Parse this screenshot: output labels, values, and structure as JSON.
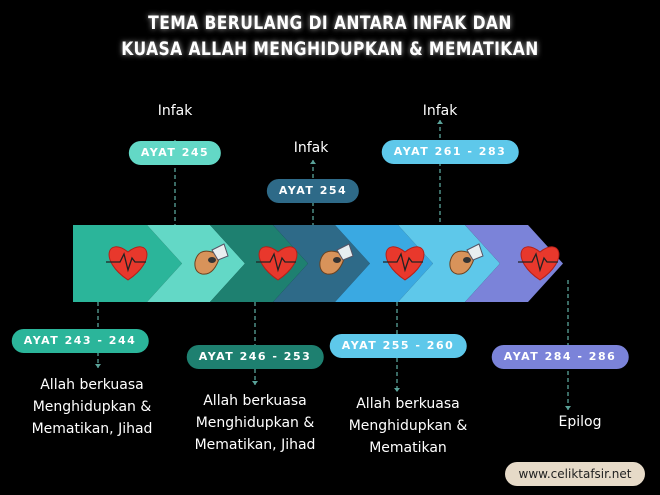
{
  "title": {
    "line1": "TEMA BERULANG DI ANTARA INFAK DAN",
    "line2": "KUASA ALLAH MENGHIDUPKAN & MEMATIKAN"
  },
  "segments": [
    {
      "color": "#2bb59a",
      "icon": "heart-icon"
    },
    {
      "color": "#63d8c6",
      "icon": "hand-icon"
    },
    {
      "color": "#1e8070",
      "icon": "heart-icon"
    },
    {
      "color": "#2e6a88",
      "icon": "hand-icon"
    },
    {
      "color": "#3aa9e2",
      "icon": "heart-icon"
    },
    {
      "color": "#5ec8ea",
      "icon": "hand-icon"
    },
    {
      "color": "#7b83d9",
      "icon": "heart-icon"
    }
  ],
  "top": [
    {
      "ayat": "AYAT 245",
      "label": "Infak",
      "color": "#63d8c6"
    },
    {
      "ayat": "AYAT 254",
      "label": "Infak",
      "color": "#2e6a88"
    },
    {
      "ayat": "AYAT 261 - 283",
      "label": "Infak",
      "color": "#5ec8ea"
    }
  ],
  "bottom": [
    {
      "ayat": "AYAT 243 - 244",
      "lines": [
        "Allah berkuasa",
        "Menghidupkan &",
        "Mematikan, Jihad"
      ],
      "color": "#2bb59a"
    },
    {
      "ayat": "AYAT 246 - 253",
      "lines": [
        "Allah berkuasa",
        "Menghidupkan &",
        "Mematikan, Jihad"
      ],
      "color": "#1e8070"
    },
    {
      "ayat": "AYAT 255 - 260",
      "lines": [
        "Allah berkuasa",
        "Menghidupkan &",
        "Mematikan"
      ],
      "color": "#5ec8ea"
    },
    {
      "ayat": "AYAT 284 - 286",
      "lines": [
        "Epilog"
      ],
      "color": "#7b83d9"
    }
  ],
  "footer": "www.celiktafsir.net"
}
